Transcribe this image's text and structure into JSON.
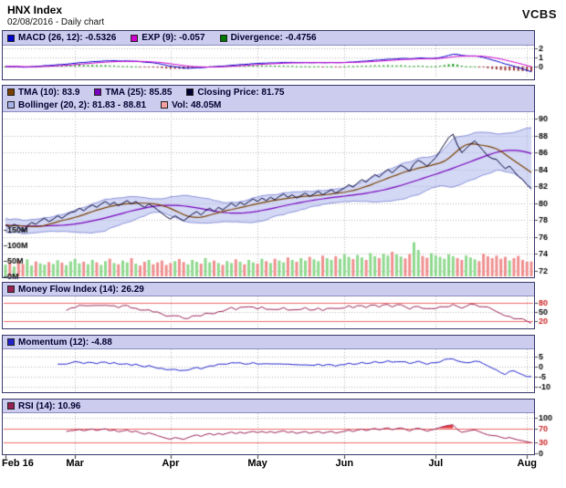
{
  "header": {
    "title": "HNX Index",
    "subtitle": "02/08/2016 - Daily chart",
    "brand": "VCBS"
  },
  "legends": {
    "macd": [
      {
        "label": "MACD (26, 12): -0.5326",
        "color": "#0000cc"
      },
      {
        "label": "EXP (9): -0.057",
        "color": "#cc00cc"
      },
      {
        "label": "Divergence: -0.4756",
        "color": "#007700"
      }
    ],
    "price_row1": [
      {
        "label": "TMA (10): 83.9",
        "color": "#7a4000"
      },
      {
        "label": "TMA (25): 85.85",
        "color": "#7700bb"
      },
      {
        "label": "Closing Price: 81.75",
        "color": "#000033"
      }
    ],
    "price_row2": [
      {
        "label": "Bollinger (20, 2): 81.83 - 88.81",
        "color": "#a8b2ec"
      },
      {
        "label": "Vol: 48.05M",
        "color": "#f4a0a0"
      }
    ],
    "mfi": [
      {
        "label": "Money Flow Index (14): 26.29",
        "color": "#992255"
      }
    ],
    "momentum": [
      {
        "label": "Momentum (12): -4.88",
        "color": "#2222cc"
      }
    ],
    "rsi": [
      {
        "label": "RSI (14): 10.96",
        "color": "#992255"
      }
    ]
  },
  "axes": {
    "x_labels": [
      "Feb 16",
      "Mar",
      "Apr",
      "May",
      "Jun",
      "Jul",
      "Aug"
    ]
  },
  "chart_data": {
    "type": "line",
    "title": "HNX Index",
    "subtitle": "02/08/2016 - Daily chart",
    "x_tick_labels": [
      "Feb 16",
      "Mar",
      "Apr",
      "May",
      "Jun",
      "Jul",
      "Aug"
    ],
    "x_tick_indices": [
      0,
      16,
      38,
      58,
      78,
      99,
      120
    ],
    "close": [
      77.4,
      77.1,
      77.5,
      77.2,
      76.6,
      77.3,
      77.7,
      77.5,
      77.9,
      78.2,
      77.8,
      78.1,
      78.5,
      78.2,
      78.6,
      78.9,
      79.0,
      79.4,
      79.1,
      79.5,
      79.8,
      79.5,
      79.9,
      80.2,
      79.8,
      80.1,
      79.7,
      80.0,
      80.3,
      79.9,
      80.2,
      79.8,
      79.5,
      79.9,
      79.6,
      79.2,
      78.8,
      78.4,
      78.1,
      78.5,
      78.2,
      77.9,
      78.3,
      78.7,
      79.0,
      78.6,
      79.1,
      79.4,
      79.0,
      79.5,
      79.2,
      79.6,
      80.0,
      79.6,
      80.1,
      79.8,
      80.2,
      80.5,
      80.2,
      80.6,
      80.3,
      80.7,
      80.4,
      80.8,
      81.1,
      80.7,
      81.0,
      80.6,
      80.9,
      81.2,
      80.8,
      81.1,
      81.4,
      81.0,
      81.3,
      81.6,
      81.2,
      81.5,
      81.8,
      82.2,
      81.9,
      82.4,
      82.8,
      82.5,
      83.0,
      83.4,
      83.1,
      83.6,
      84.0,
      83.6,
      84.1,
      84.5,
      84.2,
      83.8,
      84.7,
      85.1,
      84.8,
      84.4,
      84.9,
      85.4,
      86.2,
      87.0,
      87.8,
      88.2,
      86.9,
      86.0,
      86.5,
      87.0,
      87.4,
      86.8,
      86.2,
      85.6,
      85.3,
      85.2,
      84.6,
      84.1,
      84.4,
      83.8,
      83.2,
      82.8,
      82.2,
      81.75
    ],
    "volume_m": [
      38,
      45,
      32,
      50,
      40,
      55,
      35,
      48,
      42,
      38,
      46,
      40,
      52,
      44,
      36,
      48,
      56,
      42,
      47,
      39,
      53,
      45,
      37,
      49,
      57,
      43,
      39,
      51,
      45,
      59,
      41,
      35,
      47,
      53,
      39,
      45,
      51,
      37,
      43,
      49,
      56,
      46,
      39,
      53,
      47,
      41,
      59,
      45,
      51,
      43,
      37,
      49,
      43,
      55,
      47,
      39,
      53,
      45,
      41,
      57,
      49,
      43,
      57,
      51,
      45,
      61,
      53,
      47,
      59,
      51,
      63,
      55,
      49,
      67,
      59,
      53,
      65,
      57,
      71,
      63,
      56,
      69,
      61,
      53,
      75,
      65,
      59,
      73,
      67,
      79,
      71,
      64,
      58,
      72,
      110,
      85,
      66,
      60,
      75,
      68,
      63,
      57,
      71,
      65,
      59,
      53,
      67,
      61,
      55,
      49,
      73,
      65,
      59,
      67,
      57,
      63,
      51,
      59,
      66,
      53,
      47,
      48
    ],
    "volume_up_color": "#8fd98f",
    "volume_down_color": "#ef8f8f",
    "hist_up_color": "#0a9a0a",
    "hist_down_color": "#993333",
    "threshold_color": "#ee6a6a",
    "overbought_fill": "#e43a3a",
    "grid_color": "#b4b4b4",
    "panels": {
      "macd": {
        "ylim": [
          -1.35,
          2.35
        ],
        "yticks": [
          2,
          1,
          0
        ]
      },
      "price": {
        "ylim": [
          71.3,
          90.7
        ],
        "yticks": [
          90,
          88,
          86,
          84,
          82,
          80,
          78,
          76,
          74,
          72
        ]
      },
      "volume": {
        "yticks": [
          "150M",
          "100M",
          "50M",
          "0M"
        ]
      },
      "mfi": {
        "ylim": [
          0,
          100
        ],
        "yticks": [
          80,
          50,
          20
        ],
        "red_ticks": [
          80,
          20
        ],
        "overbought": 80,
        "oversold": 20
      },
      "momentum": {
        "ylim": [
          -12.5,
          8.5
        ],
        "yticks": [
          5,
          0,
          -5,
          -10
        ]
      },
      "rsi": {
        "ylim": [
          0,
          112
        ],
        "yticks": [
          100,
          70,
          30,
          0
        ],
        "red_ticks": [
          70,
          30
        ],
        "overbought": 70,
        "oversold": 30
      }
    },
    "indicator_params": {
      "tma_fast": 10,
      "tma_slow": 25,
      "bollinger": [
        20,
        2
      ],
      "macd": [
        26,
        12
      ],
      "exp": 9,
      "mfi": 14,
      "momentum": 12,
      "rsi": 14
    },
    "current": {
      "close": 81.75,
      "tma10": 83.9,
      "tma25": 85.85,
      "bollinger_low": 81.83,
      "bollinger_high": 88.81,
      "volume": "48.05M",
      "macd": -0.5326,
      "exp": -0.057,
      "divergence": -0.4756,
      "mfi": 26.29,
      "momentum": -4.88,
      "rsi": 10.96
    }
  }
}
